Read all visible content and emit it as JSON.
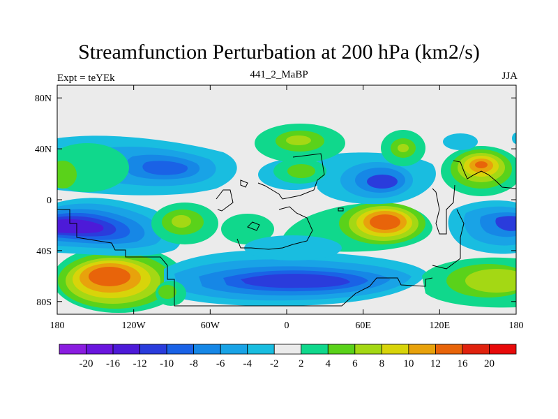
{
  "figure": {
    "title": "Streamfunction Perturbation at 200 hPa (km2/s)",
    "subtitle_left": "Expt = teYEk",
    "subtitle_center": "441_2_MaBP",
    "subtitle_right": "JJA"
  },
  "map": {
    "projection": "cylindrical equidistant",
    "lon_range": [
      -180,
      180
    ],
    "lat_range": [
      -90,
      90
    ],
    "lat_tick_labels": [
      "80N",
      "40N",
      "0",
      "40S",
      "80S"
    ],
    "lat_tick_values": [
      80,
      40,
      0,
      -40,
      -80
    ],
    "lon_tick_labels": [
      "180",
      "120W",
      "60W",
      "0",
      "60E",
      "120E",
      "180"
    ],
    "lon_tick_values": [
      -180,
      -120,
      -60,
      0,
      60,
      120,
      180
    ],
    "background_color": "#ebebeb",
    "coastline_color": "#000000"
  },
  "colorbar": {
    "orientation": "horizontal",
    "labels": [
      "-20",
      "-16",
      "-12",
      "-10",
      "-8",
      "-6",
      "-4",
      "-2",
      "2",
      "4",
      "6",
      "8",
      "10",
      "12",
      "16",
      "20"
    ],
    "colors": [
      "#8a1de0",
      "#6a16de",
      "#4d1ad8",
      "#2a3cdc",
      "#1a62e6",
      "#1687e6",
      "#19a3e6",
      "#19bde0",
      "#ebebeb",
      "#10d88c",
      "#5ad21a",
      "#a4d814",
      "#d8d40a",
      "#e8a20c",
      "#e8640a",
      "#e0220e",
      "#e80a0a"
    ]
  }
}
